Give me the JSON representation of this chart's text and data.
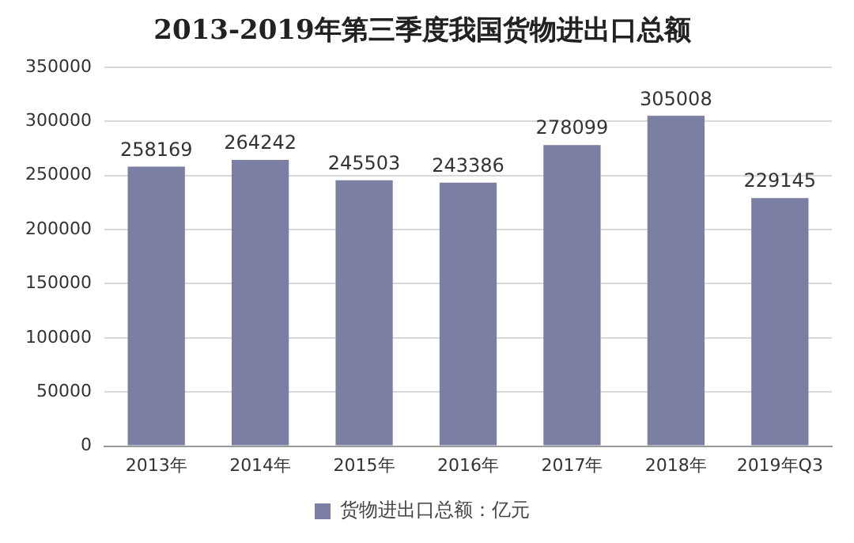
{
  "chart_data": {
    "type": "bar",
    "title": "2013-2019年第三季度我国货物进出口总额",
    "categories": [
      "2013年",
      "2014年",
      "2015年",
      "2016年",
      "2017年",
      "2018年",
      "2019年Q3"
    ],
    "series": [
      {
        "name": "货物进出口总额：亿元",
        "color": "#7a7fa3",
        "values": [
          258169,
          264242,
          245503,
          243386,
          278099,
          305008,
          229145
        ]
      }
    ],
    "ylim": [
      0,
      350000
    ],
    "yticks": [
      0,
      50000,
      100000,
      150000,
      200000,
      250000,
      300000,
      350000
    ],
    "grid": "y",
    "legend": "bottom",
    "data_labels": true
  }
}
